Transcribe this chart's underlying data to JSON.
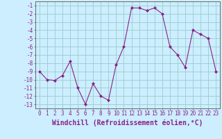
{
  "x": [
    0,
    1,
    2,
    3,
    4,
    5,
    6,
    7,
    8,
    9,
    10,
    11,
    12,
    13,
    14,
    15,
    16,
    17,
    18,
    19,
    20,
    21,
    22,
    23
  ],
  "y": [
    -9,
    -10,
    -10.1,
    -9.5,
    -7.8,
    -11,
    -13,
    -10.5,
    -12,
    -12.5,
    -8.2,
    -6,
    -1.3,
    -1.3,
    -1.6,
    -1.3,
    -2,
    -6,
    -7,
    -8.5,
    -4,
    -4.5,
    -5,
    -9
  ],
  "line_color": "#882288",
  "marker_color": "#882288",
  "bg_color": "#cceeff",
  "grid_color": "#99cccc",
  "xlabel": "Windchill (Refroidissement éolien,°C)",
  "xlim": [
    -0.5,
    23.5
  ],
  "ylim": [
    -13.5,
    -0.5
  ],
  "yticks": [
    -1,
    -2,
    -3,
    -4,
    -5,
    -6,
    -7,
    -8,
    -9,
    -10,
    -11,
    -12,
    -13
  ],
  "xticks": [
    0,
    1,
    2,
    3,
    4,
    5,
    6,
    7,
    8,
    9,
    10,
    11,
    12,
    13,
    14,
    15,
    16,
    17,
    18,
    19,
    20,
    21,
    22,
    23
  ],
  "tick_fontsize": 5.5,
  "xlabel_fontsize": 7.0
}
